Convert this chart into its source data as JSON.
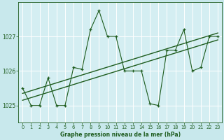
{
  "title": "Graphe pression niveau de la mer (hPa)",
  "bg_color": "#c8e8ec",
  "plot_bg": "#d4eef2",
  "grid_color": "#b8d8dc",
  "line_color": "#1e5c1e",
  "xlim": [
    0,
    23
  ],
  "ylim": [
    1024.5,
    1028.0
  ],
  "yticks": [
    1025,
    1026,
    1027
  ],
  "xticks": [
    0,
    1,
    2,
    3,
    4,
    5,
    6,
    7,
    8,
    9,
    10,
    11,
    12,
    13,
    14,
    15,
    16,
    17,
    18,
    19,
    20,
    21,
    22,
    23
  ],
  "series_main": [
    1025.5,
    1025.0,
    1025.0,
    1025.8,
    1025.0,
    1025.0,
    1026.1,
    1026.05,
    1027.2,
    1027.75,
    1027.0,
    1027.0,
    1026.0,
    1026.0,
    1026.0,
    1025.05,
    1025.0,
    1026.6,
    1026.6,
    1027.2,
    1026.0,
    1026.1,
    1027.0,
    1027.0
  ],
  "trend1_x": [
    0,
    23
  ],
  "trend1_y": [
    1025.15,
    1026.9
  ],
  "trend2_x": [
    0,
    23
  ],
  "trend2_y": [
    1025.35,
    1027.1
  ]
}
